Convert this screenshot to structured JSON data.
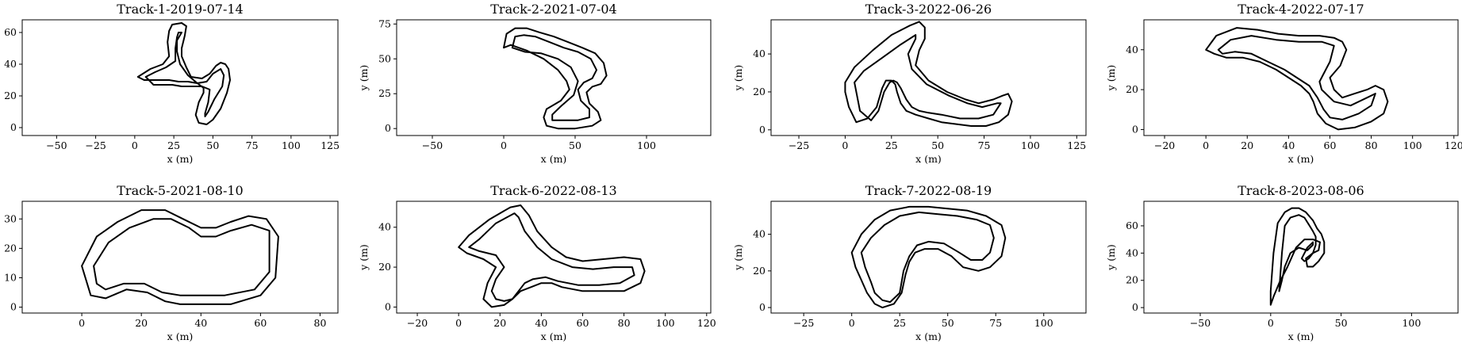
{
  "figure": {
    "background": "#ffffff",
    "line_color": "#000000"
  },
  "chart_data": [
    {
      "type": "line",
      "title": "Track-1-2019-07-14",
      "xlabel": "x (m)",
      "ylabel": "",
      "xlim": [
        -72,
        130
      ],
      "ylim": [
        -5,
        68
      ],
      "xticks": [
        -50,
        -25,
        0,
        25,
        50,
        75,
        100,
        125
      ],
      "yticks": [
        0,
        20,
        40,
        60
      ],
      "series": [
        {
          "x": [
            2,
            10,
            18,
            22,
            21,
            22,
            24,
            30,
            33,
            32,
            30,
            30,
            33,
            36,
            43,
            48,
            52,
            55,
            58,
            60,
            61,
            59,
            55,
            50,
            46,
            41,
            39,
            41,
            44,
            44,
            40,
            34,
            28,
            22,
            16,
            10,
            6,
            2
          ],
          "y": [
            32,
            37,
            40,
            45,
            54,
            61,
            65,
            66,
            64,
            58,
            50,
            45,
            38,
            32,
            31,
            34,
            39,
            41,
            40,
            37,
            30,
            22,
            12,
            5,
            2,
            3,
            8,
            16,
            22,
            25,
            28,
            29,
            29,
            30,
            30,
            30,
            30,
            32
          ]
        },
        {
          "x": [
            7,
            13,
            20,
            26,
            26,
            27,
            28,
            30,
            27,
            27,
            29,
            34,
            40,
            46,
            50,
            55,
            57,
            56,
            51,
            47,
            45,
            45,
            47,
            48,
            43,
            37,
            30,
            24,
            17,
            12,
            7
          ],
          "y": [
            32,
            35,
            38,
            42,
            50,
            57,
            60,
            60,
            55,
            48,
            40,
            33,
            28,
            29,
            34,
            37,
            33,
            26,
            18,
            10,
            7,
            9,
            16,
            24,
            26,
            26,
            26,
            27,
            27,
            27,
            32
          ]
        }
      ]
    },
    {
      "type": "line",
      "title": "Track-2-2021-07-04",
      "xlabel": "x (m)",
      "ylabel": "y (m)",
      "xlim": [
        -75,
        145
      ],
      "ylim": [
        -5,
        78
      ],
      "xticks": [
        -50,
        0,
        50,
        100
      ],
      "yticks": [
        0,
        25,
        50,
        75
      ],
      "series": [
        {
          "x": [
            0,
            2,
            8,
            16,
            25,
            35,
            45,
            55,
            64,
            70,
            72,
            68,
            62,
            58,
            60,
            66,
            68,
            62,
            50,
            38,
            30,
            28,
            30,
            40,
            46,
            44,
            38,
            28,
            16,
            5,
            0
          ],
          "y": [
            58,
            68,
            72,
            72,
            69,
            66,
            62,
            58,
            54,
            47,
            38,
            32,
            30,
            26,
            18,
            12,
            6,
            2,
            0,
            0,
            2,
            8,
            14,
            20,
            28,
            34,
            42,
            50,
            56,
            60,
            58
          ]
        },
        {
          "x": [
            6,
            8,
            14,
            22,
            32,
            42,
            52,
            61,
            65,
            62,
            56,
            52,
            54,
            60,
            60,
            52,
            42,
            34,
            34,
            40,
            49,
            52,
            47,
            38,
            26,
            15,
            6
          ],
          "y": [
            58,
            66,
            67,
            66,
            62,
            58,
            55,
            50,
            42,
            36,
            33,
            28,
            20,
            14,
            8,
            6,
            6,
            6,
            10,
            16,
            24,
            34,
            44,
            50,
            54,
            55,
            58
          ]
        }
      ]
    },
    {
      "type": "line",
      "title": "Track-3-2022-06-26",
      "xlabel": "x (m)",
      "ylabel": "y (m)",
      "xlim": [
        -40,
        130
      ],
      "ylim": [
        -3,
        58
      ],
      "xticks": [
        -25,
        0,
        25,
        50,
        75,
        100,
        125
      ],
      "yticks": [
        0,
        20,
        40
      ],
      "series": [
        {
          "x": [
            0,
            5,
            15,
            25,
            35,
            40,
            43,
            43,
            40,
            38,
            45,
            55,
            65,
            72,
            80,
            85,
            88,
            90,
            88,
            83,
            76,
            68,
            60,
            52,
            45,
            38,
            33,
            30,
            28,
            27,
            25,
            22,
            20,
            17,
            12,
            6,
            2,
            0
          ],
          "y": [
            25,
            33,
            42,
            50,
            55,
            57,
            54,
            48,
            42,
            34,
            26,
            20,
            16,
            14,
            16,
            18,
            19,
            15,
            8,
            4,
            2,
            2,
            3,
            4,
            6,
            8,
            10,
            14,
            20,
            24,
            26,
            26,
            22,
            12,
            6,
            4,
            12,
            20
          ]
        },
        {
          "x": [
            5,
            10,
            20,
            30,
            38,
            38,
            34,
            36,
            44,
            56,
            66,
            74,
            82,
            84,
            80,
            72,
            62,
            52,
            45,
            40,
            36,
            33,
            30,
            28,
            26,
            24,
            21,
            18,
            14,
            8,
            5
          ],
          "y": [
            25,
            31,
            38,
            45,
            50,
            48,
            40,
            32,
            24,
            18,
            14,
            12,
            14,
            14,
            8,
            6,
            6,
            8,
            9,
            10,
            12,
            16,
            22,
            25,
            26,
            25,
            20,
            10,
            5,
            10,
            25
          ]
        }
      ]
    },
    {
      "type": "line",
      "title": "Track-4-2022-07-17",
      "xlabel": "x (m)",
      "ylabel": "y (m)",
      "xlim": [
        -30,
        122
      ],
      "ylim": [
        -3,
        55
      ],
      "xticks": [
        -20,
        0,
        20,
        40,
        60,
        80,
        100,
        120
      ],
      "yticks": [
        0,
        20,
        40
      ],
      "series": [
        {
          "x": [
            0,
            5,
            15,
            25,
            35,
            45,
            55,
            62,
            66,
            68,
            65,
            60,
            62,
            66,
            72,
            78,
            82,
            86,
            88,
            86,
            80,
            72,
            64,
            58,
            54,
            52,
            50,
            46,
            40,
            34,
            26,
            18,
            10,
            4,
            0
          ],
          "y": [
            40,
            47,
            51,
            50,
            48,
            47,
            47,
            46,
            44,
            40,
            32,
            26,
            20,
            16,
            18,
            20,
            22,
            20,
            14,
            8,
            4,
            1,
            0,
            3,
            8,
            14,
            18,
            22,
            26,
            30,
            34,
            36,
            36,
            38,
            40
          ]
        },
        {
          "x": [
            6,
            12,
            22,
            34,
            45,
            56,
            62,
            60,
            55,
            56,
            62,
            70,
            78,
            82,
            80,
            74,
            66,
            60,
            57,
            54,
            50,
            44,
            38,
            30,
            22,
            14,
            8,
            6
          ],
          "y": [
            40,
            45,
            47,
            45,
            44,
            44,
            42,
            34,
            24,
            20,
            14,
            12,
            16,
            18,
            12,
            8,
            5,
            6,
            10,
            16,
            22,
            26,
            30,
            34,
            38,
            39,
            38,
            40
          ]
        }
      ]
    },
    {
      "type": "line",
      "title": "Track-5-2021-08-10",
      "xlabel": "x (m)",
      "ylabel": "",
      "xlim": [
        -20,
        86
      ],
      "ylim": [
        -2,
        36
      ],
      "xticks": [
        0,
        20,
        40,
        60,
        80
      ],
      "yticks": [
        0,
        10,
        20,
        30
      ],
      "series": [
        {
          "x": [
            0,
            5,
            12,
            20,
            28,
            34,
            40,
            45,
            50,
            56,
            62,
            66,
            65,
            60,
            50,
            40,
            33,
            28,
            22,
            15,
            8,
            3,
            0
          ],
          "y": [
            14,
            24,
            29,
            33,
            33,
            30,
            27,
            27,
            29,
            31,
            30,
            24,
            10,
            4,
            1,
            1,
            1,
            2,
            5,
            6,
            3,
            4,
            14
          ]
        },
        {
          "x": [
            4,
            9,
            16,
            24,
            30,
            36,
            40,
            45,
            50,
            57,
            63,
            63,
            58,
            48,
            40,
            33,
            27,
            21,
            14,
            8,
            5,
            4
          ],
          "y": [
            14,
            22,
            27,
            30,
            30,
            27,
            24,
            24,
            26,
            28,
            26,
            12,
            6,
            4,
            4,
            4,
            5,
            8,
            8,
            6,
            8,
            14
          ]
        }
      ]
    },
    {
      "type": "line",
      "title": "Track-6-2022-08-13",
      "xlabel": "x (m)",
      "ylabel": "y (m)",
      "xlim": [
        -30,
        122
      ],
      "ylim": [
        -3,
        53
      ],
      "xticks": [
        -20,
        0,
        20,
        40,
        60,
        80,
        100,
        120
      ],
      "yticks": [
        0,
        20,
        40
      ],
      "series": [
        {
          "x": [
            0,
            5,
            15,
            25,
            30,
            34,
            38,
            45,
            52,
            60,
            70,
            80,
            88,
            90,
            88,
            80,
            70,
            60,
            50,
            45,
            40,
            35,
            30,
            26,
            22,
            16,
            12,
            14,
            18,
            12,
            4,
            0
          ],
          "y": [
            30,
            36,
            44,
            50,
            51,
            46,
            38,
            30,
            25,
            23,
            24,
            25,
            24,
            18,
            12,
            8,
            8,
            8,
            10,
            12,
            12,
            10,
            8,
            4,
            1,
            0,
            4,
            12,
            20,
            24,
            27,
            30
          ]
        },
        {
          "x": [
            5,
            10,
            18,
            27,
            29,
            32,
            38,
            45,
            55,
            65,
            75,
            84,
            85,
            78,
            68,
            58,
            48,
            42,
            36,
            32,
            29,
            26,
            22,
            18,
            16,
            18,
            22,
            18,
            10,
            5
          ],
          "y": [
            30,
            34,
            42,
            47,
            45,
            38,
            30,
            24,
            20,
            19,
            20,
            20,
            16,
            12,
            11,
            11,
            13,
            15,
            14,
            12,
            8,
            4,
            3,
            4,
            8,
            14,
            20,
            26,
            28,
            30
          ]
        }
      ]
    },
    {
      "type": "line",
      "title": "Track-7-2022-08-19",
      "xlabel": "x (m)",
      "ylabel": "y (m)",
      "xlim": [
        -42,
        122
      ],
      "ylim": [
        -3,
        58
      ],
      "xticks": [
        -25,
        0,
        25,
        50,
        75,
        100
      ],
      "yticks": [
        0,
        20,
        40
      ],
      "series": [
        {
          "x": [
            0,
            5,
            12,
            20,
            30,
            40,
            50,
            60,
            70,
            78,
            80,
            78,
            72,
            66,
            58,
            52,
            45,
            38,
            33,
            30,
            28,
            26,
            22,
            16,
            12,
            8,
            5,
            2,
            0
          ],
          "y": [
            30,
            40,
            48,
            53,
            55,
            55,
            54,
            53,
            50,
            45,
            38,
            28,
            22,
            20,
            22,
            28,
            32,
            32,
            30,
            25,
            18,
            8,
            2,
            0,
            2,
            8,
            15,
            22,
            30
          ]
        },
        {
          "x": [
            5,
            10,
            17,
            25,
            35,
            45,
            55,
            65,
            72,
            74,
            72,
            68,
            62,
            56,
            48,
            40,
            34,
            30,
            27,
            25,
            20,
            16,
            12,
            10,
            7,
            5
          ],
          "y": [
            30,
            38,
            45,
            50,
            52,
            51,
            50,
            48,
            45,
            38,
            30,
            26,
            26,
            30,
            35,
            36,
            34,
            28,
            20,
            8,
            3,
            4,
            8,
            14,
            22,
            30
          ]
        }
      ]
    },
    {
      "type": "line",
      "title": "Track-8-2023-08-06",
      "xlabel": "x (m)",
      "ylabel": "y (m)",
      "xlim": [
        -90,
        133
      ],
      "ylim": [
        -4,
        78
      ],
      "xticks": [
        -50,
        0,
        50,
        100
      ],
      "yticks": [
        0,
        20,
        40,
        60
      ],
      "series": [
        {
          "x": [
            2,
            5,
            10,
            15,
            20,
            25,
            30,
            33,
            36,
            38,
            38,
            34,
            30,
            26,
            25,
            30,
            34,
            35,
            30,
            24,
            18,
            12,
            6,
            2,
            0,
            0,
            2
          ],
          "y": [
            40,
            62,
            70,
            73,
            73,
            70,
            64,
            58,
            54,
            48,
            40,
            34,
            30,
            30,
            36,
            40,
            42,
            48,
            50,
            50,
            44,
            30,
            18,
            8,
            2,
            12,
            40
          ]
        },
        {
          "x": [
            8,
            10,
            14,
            20,
            24,
            27,
            30,
            32,
            32,
            30,
            27,
            24,
            22,
            26,
            30,
            30,
            26,
            20,
            14,
            10,
            8,
            6,
            8
          ],
          "y": [
            40,
            60,
            66,
            68,
            66,
            61,
            56,
            52,
            46,
            40,
            36,
            34,
            36,
            44,
            48,
            46,
            42,
            44,
            40,
            30,
            20,
            12,
            40
          ]
        }
      ]
    }
  ]
}
